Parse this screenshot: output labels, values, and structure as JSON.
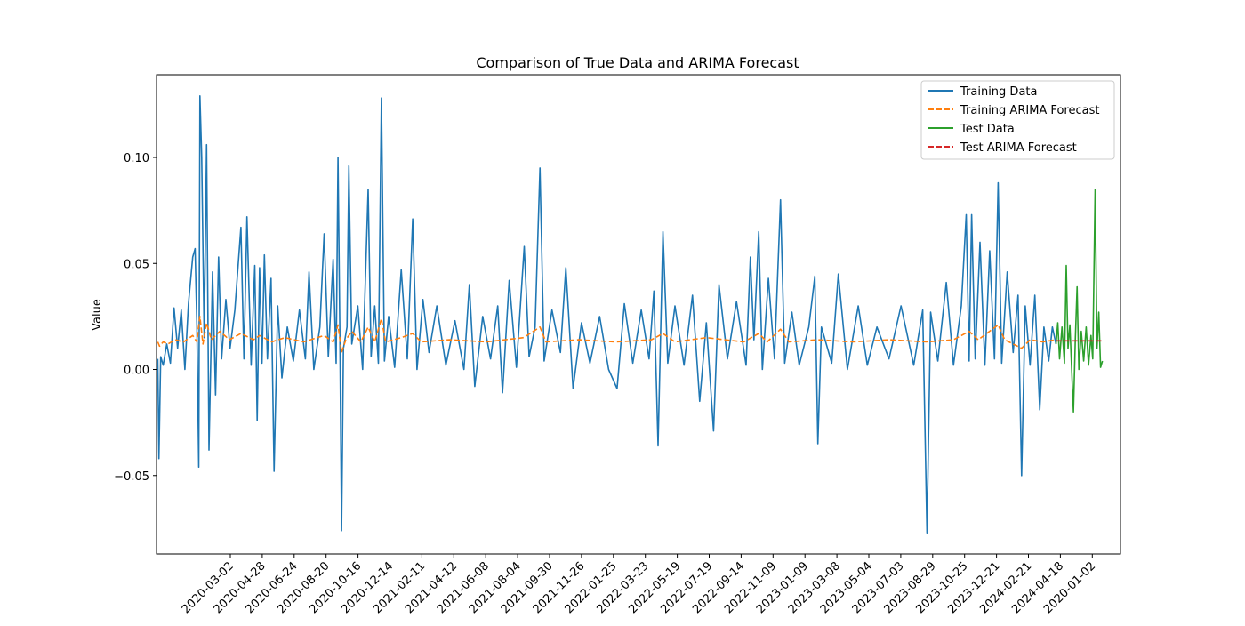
{
  "chart_data": {
    "type": "line",
    "title": "Comparison of True Data and ARIMA Forecast",
    "xlabel": "",
    "ylabel": "Value",
    "x_range": [
      "2020-01-01",
      "2024-05-18"
    ],
    "ylim": [
      -0.087,
      0.139
    ],
    "grid": false,
    "legend_position": "top-right",
    "x_tick_labels": [
      "2020-03-02",
      "2020-04-28",
      "2020-06-24",
      "2020-08-20",
      "2020-10-16",
      "2020-12-14",
      "2021-02-11",
      "2021-04-12",
      "2021-06-08",
      "2021-08-04",
      "2021-09-30",
      "2021-11-26",
      "2022-01-25",
      "2022-03-23",
      "2022-05-19",
      "2022-07-19",
      "2022-09-14",
      "2022-11-09",
      "2023-01-09",
      "2023-03-08",
      "2023-05-04",
      "2023-07-03",
      "2023-08-29",
      "2023-10-25",
      "2023-12-21",
      "2024-02-21",
      "2024-04-18",
      "2020-01-02"
    ],
    "y_tick_labels": [
      "−0.05",
      "0.00",
      "0.05",
      "0.10"
    ],
    "y_ticks": [
      -0.05,
      0.0,
      0.05,
      0.1
    ],
    "series": [
      {
        "name": "Training Data",
        "color": "#1f77b4",
        "style": "solid",
        "points": [
          [
            "2020-01-03",
            0.005
          ],
          [
            "2020-01-05",
            -0.042
          ],
          [
            "2020-01-08",
            0.006
          ],
          [
            "2020-01-12",
            0.002
          ],
          [
            "2020-01-18",
            0.012
          ],
          [
            "2020-01-24",
            0.003
          ],
          [
            "2020-01-30",
            0.029
          ],
          [
            "2020-02-05",
            0.01
          ],
          [
            "2020-02-11",
            0.028
          ],
          [
            "2020-02-17",
            0.0
          ],
          [
            "2020-02-23",
            0.031
          ],
          [
            "2020-03-01",
            0.053
          ],
          [
            "2020-03-05",
            0.057
          ],
          [
            "2020-03-08",
            0.02
          ],
          [
            "2020-03-11",
            -0.046
          ],
          [
            "2020-03-13",
            0.129
          ],
          [
            "2020-03-16",
            0.1
          ],
          [
            "2020-03-20",
            0.015
          ],
          [
            "2020-03-24",
            0.106
          ],
          [
            "2020-03-28",
            -0.038
          ],
          [
            "2020-04-03",
            0.046
          ],
          [
            "2020-04-08",
            -0.012
          ],
          [
            "2020-04-13",
            0.053
          ],
          [
            "2020-04-18",
            0.005
          ],
          [
            "2020-04-25",
            0.033
          ],
          [
            "2020-05-02",
            0.01
          ],
          [
            "2020-05-10",
            0.028
          ],
          [
            "2020-05-20",
            0.067
          ],
          [
            "2020-05-25",
            0.005
          ],
          [
            "2020-05-30",
            0.072
          ],
          [
            "2020-06-06",
            0.002
          ],
          [
            "2020-06-12",
            0.049
          ],
          [
            "2020-06-16",
            -0.024
          ],
          [
            "2020-06-20",
            0.048
          ],
          [
            "2020-06-24",
            0.003
          ],
          [
            "2020-06-28",
            0.054
          ],
          [
            "2020-07-03",
            0.005
          ],
          [
            "2020-07-09",
            0.043
          ],
          [
            "2020-07-14",
            -0.048
          ],
          [
            "2020-07-20",
            0.03
          ],
          [
            "2020-07-27",
            -0.004
          ],
          [
            "2020-08-05",
            0.02
          ],
          [
            "2020-08-15",
            0.004
          ],
          [
            "2020-08-25",
            0.028
          ],
          [
            "2020-09-04",
            0.005
          ],
          [
            "2020-09-10",
            0.046
          ],
          [
            "2020-09-18",
            0.0
          ],
          [
            "2020-09-28",
            0.02
          ],
          [
            "2020-10-05",
            0.064
          ],
          [
            "2020-10-12",
            0.006
          ],
          [
            "2020-10-20",
            0.052
          ],
          [
            "2020-10-25",
            0.003
          ],
          [
            "2020-10-28",
            0.1
          ],
          [
            "2020-10-31",
            0.02
          ],
          [
            "2020-11-03",
            -0.076
          ],
          [
            "2020-11-06",
            0.01
          ],
          [
            "2020-11-12",
            0.02
          ],
          [
            "2020-11-15",
            0.096
          ],
          [
            "2020-11-20",
            0.012
          ],
          [
            "2020-11-30",
            0.03
          ],
          [
            "2020-12-08",
            0.0
          ],
          [
            "2020-12-17",
            0.085
          ],
          [
            "2020-12-22",
            0.006
          ],
          [
            "2020-12-28",
            0.03
          ],
          [
            "2021-01-03",
            0.003
          ],
          [
            "2021-01-08",
            0.128
          ],
          [
            "2021-01-13",
            0.004
          ],
          [
            "2021-01-20",
            0.025
          ],
          [
            "2021-01-30",
            0.001
          ],
          [
            "2021-02-10",
            0.047
          ],
          [
            "2021-02-20",
            0.005
          ],
          [
            "2021-03-01",
            0.071
          ],
          [
            "2021-03-08",
            0.0
          ],
          [
            "2021-03-18",
            0.033
          ],
          [
            "2021-03-28",
            0.008
          ],
          [
            "2021-04-10",
            0.03
          ],
          [
            "2021-04-25",
            0.002
          ],
          [
            "2021-05-10",
            0.023
          ],
          [
            "2021-05-25",
            0.0
          ],
          [
            "2021-06-03",
            0.04
          ],
          [
            "2021-06-12",
            -0.008
          ],
          [
            "2021-06-25",
            0.025
          ],
          [
            "2021-07-08",
            0.005
          ],
          [
            "2021-07-20",
            0.03
          ],
          [
            "2021-07-28",
            -0.011
          ],
          [
            "2021-08-08",
            0.042
          ],
          [
            "2021-08-20",
            0.001
          ],
          [
            "2021-09-02",
            0.058
          ],
          [
            "2021-09-10",
            0.006
          ],
          [
            "2021-09-20",
            0.02
          ],
          [
            "2021-09-28",
            0.095
          ],
          [
            "2021-10-05",
            0.004
          ],
          [
            "2021-10-18",
            0.028
          ],
          [
            "2021-11-01",
            0.008
          ],
          [
            "2021-11-10",
            0.048
          ],
          [
            "2021-11-22",
            -0.009
          ],
          [
            "2021-12-06",
            0.022
          ],
          [
            "2021-12-20",
            0.003
          ],
          [
            "2022-01-05",
            0.025
          ],
          [
            "2022-01-20",
            0.0
          ],
          [
            "2022-02-03",
            -0.009
          ],
          [
            "2022-02-15",
            0.031
          ],
          [
            "2022-03-01",
            0.003
          ],
          [
            "2022-03-15",
            0.028
          ],
          [
            "2022-03-28",
            0.005
          ],
          [
            "2022-04-05",
            0.037
          ],
          [
            "2022-04-12",
            -0.036
          ],
          [
            "2022-04-20",
            0.065
          ],
          [
            "2022-04-28",
            0.003
          ],
          [
            "2022-05-10",
            0.03
          ],
          [
            "2022-05-25",
            0.002
          ],
          [
            "2022-06-08",
            0.035
          ],
          [
            "2022-06-20",
            -0.015
          ],
          [
            "2022-07-01",
            0.022
          ],
          [
            "2022-07-13",
            -0.029
          ],
          [
            "2022-07-22",
            0.04
          ],
          [
            "2022-08-05",
            0.005
          ],
          [
            "2022-08-20",
            0.032
          ],
          [
            "2022-09-05",
            0.002
          ],
          [
            "2022-09-12",
            0.053
          ],
          [
            "2022-09-18",
            0.014
          ],
          [
            "2022-09-26",
            0.065
          ],
          [
            "2022-10-02",
            0.0
          ],
          [
            "2022-10-12",
            0.043
          ],
          [
            "2022-10-22",
            0.005
          ],
          [
            "2022-11-01",
            0.08
          ],
          [
            "2022-11-08",
            0.003
          ],
          [
            "2022-11-20",
            0.027
          ],
          [
            "2022-12-02",
            0.002
          ],
          [
            "2022-12-18",
            0.02
          ],
          [
            "2022-12-28",
            0.044
          ],
          [
            "2023-01-02",
            -0.035
          ],
          [
            "2023-01-08",
            0.02
          ],
          [
            "2023-01-25",
            0.003
          ],
          [
            "2023-02-05",
            0.045
          ],
          [
            "2023-02-20",
            0.0
          ],
          [
            "2023-03-10",
            0.03
          ],
          [
            "2023-03-25",
            0.002
          ],
          [
            "2023-04-10",
            0.02
          ],
          [
            "2023-04-30",
            0.005
          ],
          [
            "2023-05-20",
            0.03
          ],
          [
            "2023-06-10",
            0.002
          ],
          [
            "2023-06-25",
            0.028
          ],
          [
            "2023-07-02",
            -0.077
          ],
          [
            "2023-07-08",
            0.027
          ],
          [
            "2023-07-20",
            0.004
          ],
          [
            "2023-08-03",
            0.041
          ],
          [
            "2023-08-15",
            0.002
          ],
          [
            "2023-08-28",
            0.03
          ],
          [
            "2023-09-05",
            0.073
          ],
          [
            "2023-09-10",
            0.004
          ],
          [
            "2023-09-14",
            0.073
          ],
          [
            "2023-09-20",
            0.005
          ],
          [
            "2023-09-28",
            0.06
          ],
          [
            "2023-10-06",
            0.002
          ],
          [
            "2023-10-14",
            0.056
          ],
          [
            "2023-10-22",
            0.005
          ],
          [
            "2023-10-28",
            0.088
          ],
          [
            "2023-11-03",
            0.003
          ],
          [
            "2023-11-12",
            0.046
          ],
          [
            "2023-11-22",
            0.008
          ],
          [
            "2023-11-30",
            0.035
          ],
          [
            "2023-12-06",
            -0.05
          ],
          [
            "2023-12-12",
            0.03
          ],
          [
            "2023-12-20",
            0.002
          ],
          [
            "2023-12-28",
            0.035
          ],
          [
            "2024-01-05",
            -0.019
          ],
          [
            "2024-01-12",
            0.02
          ],
          [
            "2024-01-20",
            0.004
          ],
          [
            "2024-01-26",
            0.02
          ],
          [
            "2024-02-01",
            0.012
          ]
        ]
      },
      {
        "name": "Training ARIMA Forecast",
        "color": "#ff7f0e",
        "style": "dashed",
        "points": [
          [
            "2020-01-03",
            0.013
          ],
          [
            "2020-01-06",
            0.011
          ],
          [
            "2020-01-12",
            0.013
          ],
          [
            "2020-01-20",
            0.012
          ],
          [
            "2020-02-01",
            0.014
          ],
          [
            "2020-02-15",
            0.013
          ],
          [
            "2020-03-01",
            0.016
          ],
          [
            "2020-03-08",
            0.013
          ],
          [
            "2020-03-13",
            0.025
          ],
          [
            "2020-03-18",
            0.012
          ],
          [
            "2020-03-24",
            0.022
          ],
          [
            "2020-04-01",
            0.014
          ],
          [
            "2020-04-15",
            0.018
          ],
          [
            "2020-05-01",
            0.014
          ],
          [
            "2020-05-20",
            0.017
          ],
          [
            "2020-06-10",
            0.014
          ],
          [
            "2020-06-20",
            0.016
          ],
          [
            "2020-07-10",
            0.013
          ],
          [
            "2020-08-01",
            0.015
          ],
          [
            "2020-09-01",
            0.013
          ],
          [
            "2020-10-05",
            0.016
          ],
          [
            "2020-10-20",
            0.013
          ],
          [
            "2020-10-28",
            0.021
          ],
          [
            "2020-11-03",
            0.008
          ],
          [
            "2020-11-10",
            0.014
          ],
          [
            "2020-11-20",
            0.018
          ],
          [
            "2020-12-05",
            0.013
          ],
          [
            "2020-12-17",
            0.02
          ],
          [
            "2020-12-28",
            0.013
          ],
          [
            "2021-01-08",
            0.024
          ],
          [
            "2021-01-15",
            0.013
          ],
          [
            "2021-02-10",
            0.015
          ],
          [
            "2021-03-01",
            0.017
          ],
          [
            "2021-03-15",
            0.013
          ],
          [
            "2021-05-01",
            0.014
          ],
          [
            "2021-07-01",
            0.013
          ],
          [
            "2021-09-01",
            0.015
          ],
          [
            "2021-09-28",
            0.02
          ],
          [
            "2021-10-08",
            0.013
          ],
          [
            "2021-12-01",
            0.014
          ],
          [
            "2022-02-01",
            0.013
          ],
          [
            "2022-04-01",
            0.014
          ],
          [
            "2022-04-20",
            0.017
          ],
          [
            "2022-05-10",
            0.013
          ],
          [
            "2022-07-01",
            0.015
          ],
          [
            "2022-09-01",
            0.013
          ],
          [
            "2022-09-26",
            0.017
          ],
          [
            "2022-10-10",
            0.013
          ],
          [
            "2022-11-01",
            0.019
          ],
          [
            "2022-11-15",
            0.013
          ],
          [
            "2023-01-01",
            0.014
          ],
          [
            "2023-03-01",
            0.013
          ],
          [
            "2023-05-01",
            0.014
          ],
          [
            "2023-07-01",
            0.013
          ],
          [
            "2023-08-15",
            0.014
          ],
          [
            "2023-09-10",
            0.018
          ],
          [
            "2023-09-25",
            0.014
          ],
          [
            "2023-10-28",
            0.021
          ],
          [
            "2023-11-08",
            0.014
          ],
          [
            "2023-12-06",
            0.01
          ],
          [
            "2023-12-20",
            0.014
          ],
          [
            "2024-01-10",
            0.013
          ],
          [
            "2024-02-01",
            0.014
          ]
        ]
      },
      {
        "name": "Test Data",
        "color": "#2ca02c",
        "style": "solid",
        "points": [
          [
            "2024-02-01",
            0.012
          ],
          [
            "2024-02-04",
            0.022
          ],
          [
            "2024-02-07",
            0.005
          ],
          [
            "2024-02-11",
            0.02
          ],
          [
            "2024-02-15",
            0.003
          ],
          [
            "2024-02-18",
            0.049
          ],
          [
            "2024-02-21",
            0.01
          ],
          [
            "2024-02-24",
            0.021
          ],
          [
            "2024-02-27",
            0.0
          ],
          [
            "2024-03-01",
            -0.02
          ],
          [
            "2024-03-04",
            0.014
          ],
          [
            "2024-03-07",
            0.039
          ],
          [
            "2024-03-10",
            0.0
          ],
          [
            "2024-03-14",
            0.018
          ],
          [
            "2024-03-18",
            0.004
          ],
          [
            "2024-03-22",
            0.02
          ],
          [
            "2024-03-26",
            0.002
          ],
          [
            "2024-03-30",
            0.016
          ],
          [
            "2024-04-02",
            0.005
          ],
          [
            "2024-04-06",
            0.085
          ],
          [
            "2024-04-09",
            0.01
          ],
          [
            "2024-04-12",
            0.027
          ],
          [
            "2024-04-15",
            0.001
          ],
          [
            "2024-04-18",
            0.004
          ]
        ]
      },
      {
        "name": "Test ARIMA Forecast",
        "color": "#d62728",
        "style": "dashed",
        "points": [
          [
            "2024-02-01",
            0.0135
          ],
          [
            "2024-04-18",
            0.0135
          ]
        ]
      }
    ]
  }
}
